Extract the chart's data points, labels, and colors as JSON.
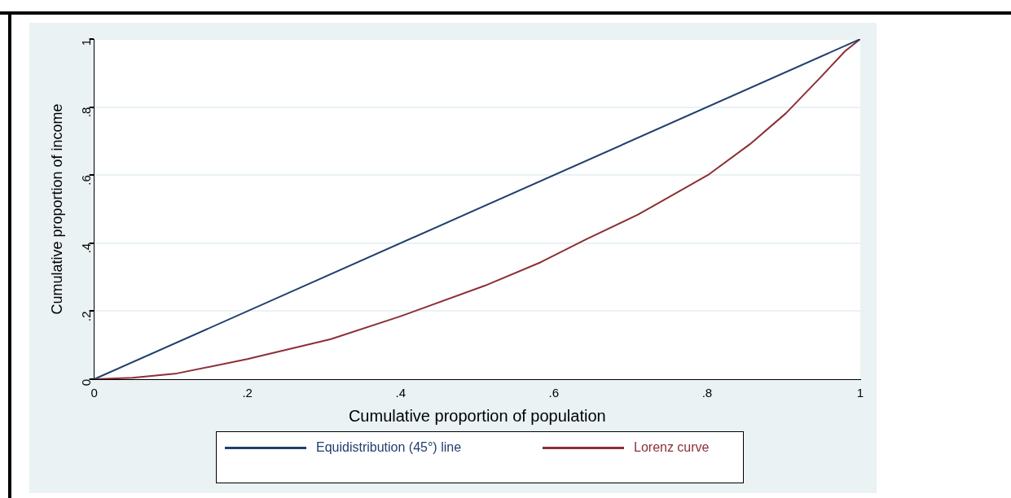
{
  "chart_data": {
    "type": "line",
    "xlabel": "Cumulative proportion of population",
    "ylabel": "Cumulative proportion of income",
    "xlim": [
      0,
      1
    ],
    "ylim": [
      0,
      1
    ],
    "xticks": [
      0,
      {
        "value": 0.2,
        "label": ".2"
      },
      {
        "value": 0.4,
        "label": ".4"
      },
      {
        "value": 0.6,
        "label": ".6"
      },
      {
        "value": 0.8,
        "label": ".8"
      },
      1
    ],
    "yticks": [
      0,
      {
        "value": 0.2,
        "label": ".2"
      },
      {
        "value": 0.4,
        "label": ".4"
      },
      {
        "value": 0.6,
        "label": ".6"
      },
      {
        "value": 0.8,
        "label": ".8"
      },
      1
    ],
    "grid": "y",
    "legend": "bottom",
    "marker": "none",
    "line_style": "solid",
    "series": [
      {
        "name": "Equidistribution (45°) line",
        "color": "#1f3f6e",
        "x": [
          0,
          1
        ],
        "values": [
          0,
          1
        ]
      },
      {
        "name": "Lorenz curve",
        "color": "#8c2f35",
        "x": [
          0,
          0.05,
          0.108,
          0.2,
          0.309,
          0.4,
          0.51,
          0.583,
          0.641,
          0.71,
          0.801,
          0.856,
          0.903,
          0.947,
          0.98,
          1
        ],
        "values": [
          0,
          0.004,
          0.017,
          0.059,
          0.118,
          0.185,
          0.275,
          0.344,
          0.41,
          0.484,
          0.6,
          0.691,
          0.782,
          0.885,
          0.964,
          1
        ]
      }
    ]
  }
}
